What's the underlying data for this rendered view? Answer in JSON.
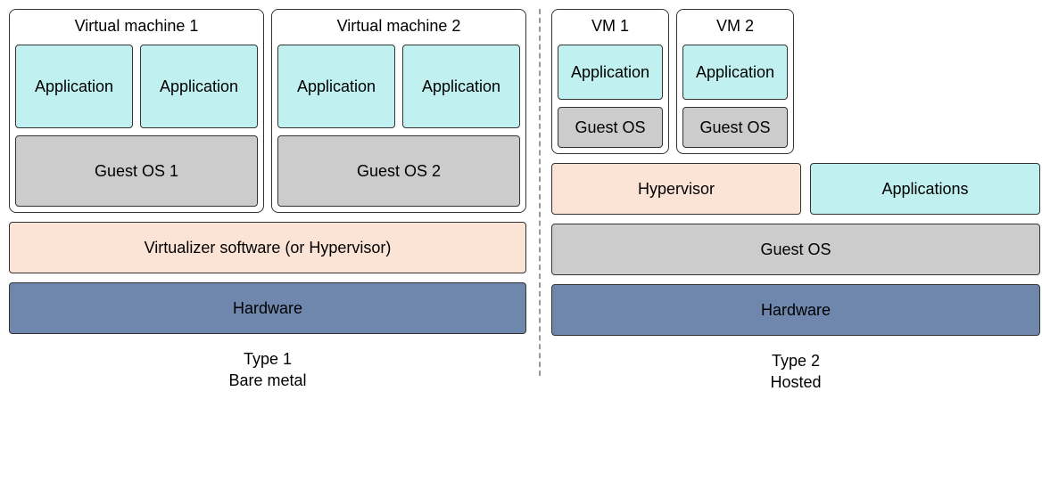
{
  "colors": {
    "cyan": "#c0f0f0",
    "gray": "#cccccc",
    "peach": "#fbe3d5",
    "slate": "#6f87ac",
    "border": "#333333",
    "white": "#ffffff",
    "text": "#000000"
  },
  "type1": {
    "vms": [
      {
        "title": "Virtual machine 1",
        "apps": [
          "Application",
          "Application"
        ],
        "guest_os": "Guest OS 1"
      },
      {
        "title": "Virtual machine 2",
        "apps": [
          "Application",
          "Application"
        ],
        "guest_os": "Guest OS 2"
      }
    ],
    "virtualizer": "Virtualizer software (or Hypervisor)",
    "hardware": "Hardware",
    "caption_line1": "Type 1",
    "caption_line2": "Bare metal",
    "sizes": {
      "vm_width": 286,
      "app_height": 94,
      "guest_os_height": 80,
      "layer_height": 58
    }
  },
  "type2": {
    "vms": [
      {
        "title": "VM 1",
        "app": "Application",
        "guest_os": "Guest OS"
      },
      {
        "title": "VM 2",
        "app": "Application",
        "guest_os": "Guest OS"
      }
    ],
    "hypervisor": "Hypervisor",
    "host_apps": "Applications",
    "host_guest_os": "Guest OS",
    "hardware": "Hardware",
    "caption_line1": "Type 2",
    "caption_line2": "Hosted",
    "sizes": {
      "vm_width": 132,
      "app_height": 62,
      "guest_os_height": 46,
      "hypervisor_width": 280,
      "hostapps_width": 258,
      "layer_height": 58
    }
  }
}
